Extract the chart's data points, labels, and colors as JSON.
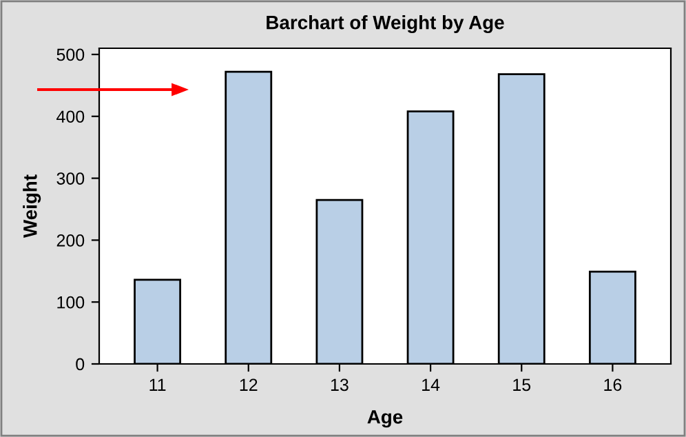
{
  "chart_data": {
    "type": "bar",
    "title": "Barchart of Weight by Age",
    "xlabel": "Age",
    "ylabel": "Weight",
    "categories": [
      "11",
      "12",
      "13",
      "14",
      "15",
      "16"
    ],
    "values": [
      136,
      472,
      265,
      408,
      468,
      149
    ],
    "color": "#b9cfe6",
    "ylim": [
      0,
      510
    ],
    "yticks": [
      0,
      100,
      200,
      300,
      400,
      500
    ],
    "grid": false,
    "legend": false
  }
}
